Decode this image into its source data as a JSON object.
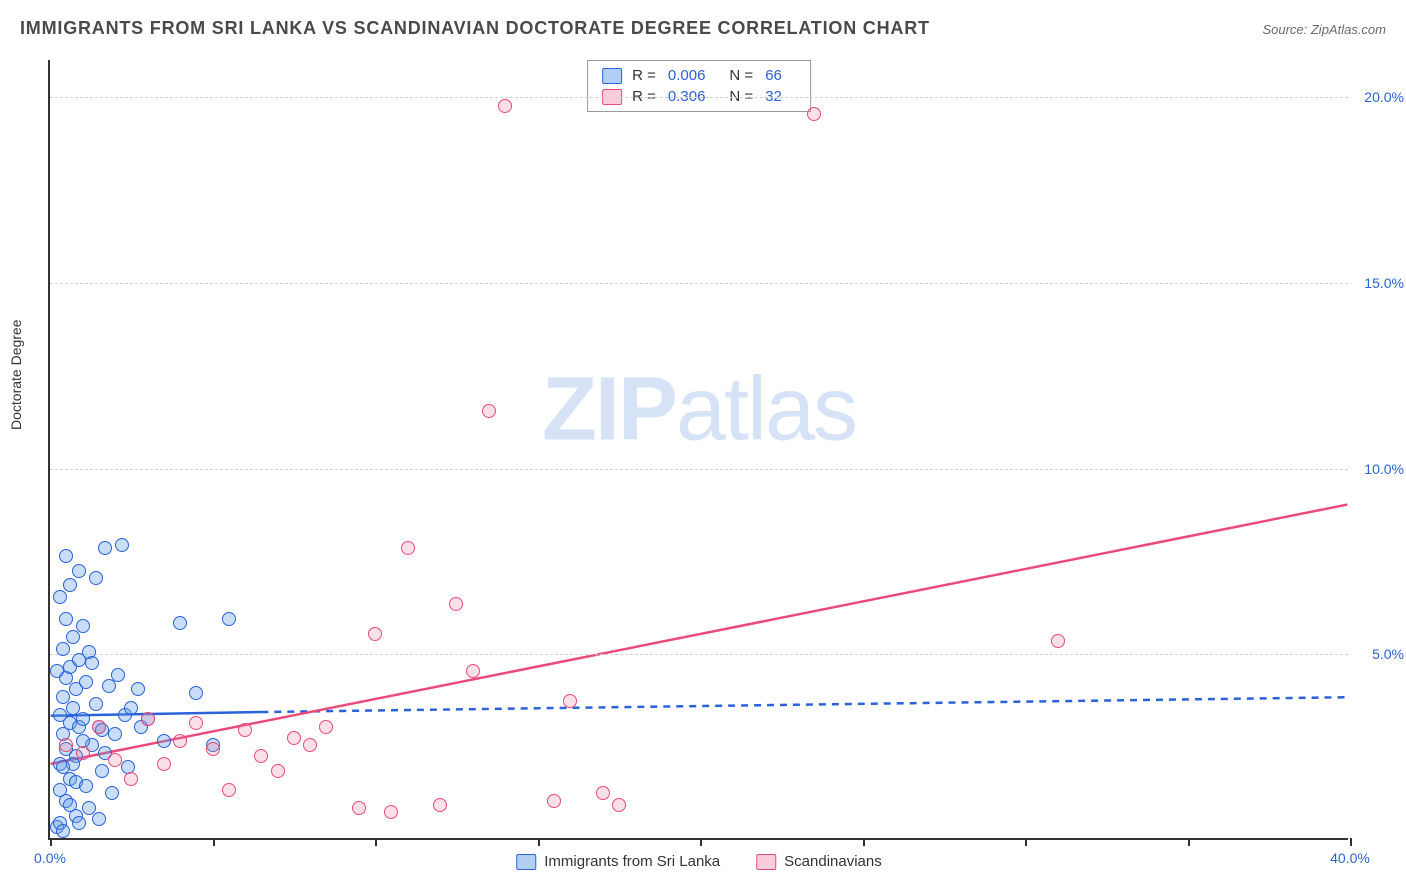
{
  "title": "IMMIGRANTS FROM SRI LANKA VS SCANDINAVIAN DOCTORATE DEGREE CORRELATION CHART",
  "source_prefix": "Source: ",
  "source": "ZipAtlas.com",
  "watermark_bold": "ZIP",
  "watermark_light": "atlas",
  "ylabel": "Doctorate Degree",
  "chart": {
    "type": "scatter",
    "xlim": [
      0,
      40
    ],
    "ylim": [
      0,
      21
    ],
    "x_ticks": [
      0,
      5,
      10,
      15,
      20,
      25,
      30,
      35,
      40
    ],
    "x_tick_labels": {
      "0": "0.0%",
      "40": "40.0%"
    },
    "y_gridlines": [
      5,
      10,
      15,
      20
    ],
    "y_tick_labels": {
      "5": "5.0%",
      "10": "10.0%",
      "15": "15.0%",
      "20": "20.0%"
    },
    "background_color": "#ffffff",
    "grid_color": "#d0d0d0",
    "axis_color": "#333333",
    "series": [
      {
        "name": "Immigrants from Sri Lanka",
        "color_fill": "rgba(100,160,230,0.35)",
        "color_stroke": "#2962d9",
        "marker_radius": 7,
        "trend": {
          "x1": 0,
          "y1": 3.3,
          "x2": 6.5,
          "y2": 3.4,
          "solid": true,
          "dash_x2": 40,
          "dash_y2": 3.8
        },
        "R": "0.006",
        "N": "66",
        "points": [
          [
            0.2,
            0.3
          ],
          [
            0.3,
            0.4
          ],
          [
            0.4,
            0.2
          ],
          [
            0.5,
            1.0
          ],
          [
            0.6,
            1.6
          ],
          [
            0.3,
            2.0
          ],
          [
            0.5,
            2.4
          ],
          [
            0.8,
            2.2
          ],
          [
            0.4,
            2.8
          ],
          [
            0.6,
            3.1
          ],
          [
            0.9,
            3.0
          ],
          [
            0.3,
            3.3
          ],
          [
            0.7,
            3.5
          ],
          [
            1.0,
            3.2
          ],
          [
            0.4,
            3.8
          ],
          [
            0.8,
            4.0
          ],
          [
            0.5,
            4.3
          ],
          [
            1.1,
            4.2
          ],
          [
            0.6,
            4.6
          ],
          [
            0.9,
            4.8
          ],
          [
            0.4,
            5.1
          ],
          [
            1.2,
            5.0
          ],
          [
            0.7,
            5.4
          ],
          [
            0.5,
            5.9
          ],
          [
            1.0,
            5.7
          ],
          [
            0.3,
            1.3
          ],
          [
            0.8,
            1.5
          ],
          [
            1.3,
            2.5
          ],
          [
            1.5,
            3.0
          ],
          [
            1.7,
            2.3
          ],
          [
            1.4,
            3.6
          ],
          [
            1.8,
            4.1
          ],
          [
            2.0,
            2.8
          ],
          [
            2.3,
            3.3
          ],
          [
            1.6,
            1.8
          ],
          [
            1.9,
            1.2
          ],
          [
            2.5,
            3.5
          ],
          [
            2.1,
            4.4
          ],
          [
            2.8,
            3.0
          ],
          [
            1.2,
            0.8
          ],
          [
            0.3,
            6.5
          ],
          [
            0.6,
            6.8
          ],
          [
            0.9,
            7.2
          ],
          [
            1.4,
            7.0
          ],
          [
            0.5,
            7.6
          ],
          [
            1.7,
            7.8
          ],
          [
            2.2,
            7.9
          ],
          [
            0.8,
            0.6
          ],
          [
            1.1,
            1.4
          ],
          [
            1.5,
            0.5
          ],
          [
            0.2,
            4.5
          ],
          [
            0.7,
            2.0
          ],
          [
            1.0,
            2.6
          ],
          [
            0.4,
            1.9
          ],
          [
            1.3,
            4.7
          ],
          [
            0.6,
            0.9
          ],
          [
            0.9,
            0.4
          ],
          [
            1.6,
            2.9
          ],
          [
            2.4,
            1.9
          ],
          [
            2.7,
            4.0
          ],
          [
            3.0,
            3.2
          ],
          [
            3.5,
            2.6
          ],
          [
            4.0,
            5.8
          ],
          [
            4.5,
            3.9
          ],
          [
            5.0,
            2.5
          ],
          [
            5.5,
            5.9
          ]
        ]
      },
      {
        "name": "Scandinavians",
        "color_fill": "rgba(240,130,160,0.25)",
        "color_stroke": "#e94b7a",
        "marker_radius": 7,
        "trend": {
          "x1": 0,
          "y1": 2.0,
          "x2": 40,
          "y2": 9.0,
          "solid": true
        },
        "R": "0.306",
        "N": "32",
        "points": [
          [
            0.5,
            2.5
          ],
          [
            1.0,
            2.3
          ],
          [
            1.5,
            3.0
          ],
          [
            2.0,
            2.1
          ],
          [
            2.5,
            1.6
          ],
          [
            3.0,
            3.2
          ],
          [
            3.5,
            2.0
          ],
          [
            4.0,
            2.6
          ],
          [
            4.5,
            3.1
          ],
          [
            5.0,
            2.4
          ],
          [
            5.5,
            1.3
          ],
          [
            6.0,
            2.9
          ],
          [
            6.5,
            2.2
          ],
          [
            7.0,
            1.8
          ],
          [
            7.5,
            2.7
          ],
          [
            8.0,
            2.5
          ],
          [
            8.5,
            3.0
          ],
          [
            9.5,
            0.8
          ],
          [
            10.0,
            5.5
          ],
          [
            10.5,
            0.7
          ],
          [
            11.0,
            7.8
          ],
          [
            12.0,
            0.9
          ],
          [
            12.5,
            6.3
          ],
          [
            13.0,
            4.5
          ],
          [
            13.5,
            11.5
          ],
          [
            14.0,
            19.7
          ],
          [
            15.5,
            1.0
          ],
          [
            16.0,
            3.7
          ],
          [
            17.0,
            1.2
          ],
          [
            23.5,
            19.5
          ],
          [
            31.0,
            5.3
          ],
          [
            17.5,
            0.9
          ]
        ]
      }
    ]
  },
  "legend_top": {
    "r_label": "R =",
    "n_label": "N ="
  },
  "legend_bottom": {
    "series1": "Immigrants from Sri Lanka",
    "series2": "Scandinavians"
  }
}
